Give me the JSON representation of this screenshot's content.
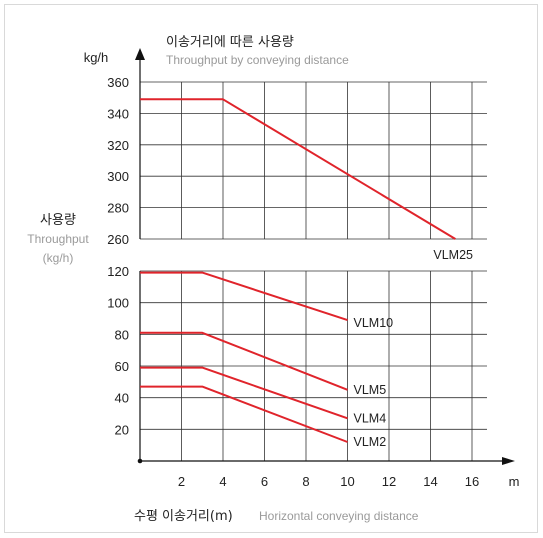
{
  "chart_data": {
    "type": "line",
    "title": "이송거리에 따른 사용량",
    "subtitle": "Throughput by conveying distance",
    "ylabel_unit": "kg/h",
    "ylabel_ko": "사용량",
    "ylabel_en": "Throughput",
    "ylabel_unit_paren": "(kg/h)",
    "xlabel_unit": "m",
    "xlabel_ko": "수평 이송거리(m)",
    "xlabel_en": "Horizontal conveying distance",
    "origin_label": "•",
    "xlim": [
      0,
      16
    ],
    "x_ticks": [
      "2",
      "4",
      "6",
      "8",
      "10",
      "12",
      "14",
      "16"
    ],
    "y_break": "axis is broken between 120 and 260",
    "y_ticks_upper": [
      "360",
      "340",
      "320",
      "300",
      "280",
      "260"
    ],
    "y_ticks_lower": [
      "120",
      "100",
      "80",
      "60",
      "40",
      "20"
    ],
    "grid": true,
    "line_color": "#e0242b",
    "series": [
      {
        "name": "VLM25",
        "x": [
          0,
          4,
          15.2
        ],
        "y": [
          349,
          349,
          260
        ]
      },
      {
        "name": "VLM10",
        "x": [
          0,
          3,
          10
        ],
        "y": [
          119,
          119,
          89
        ]
      },
      {
        "name": "VLM5",
        "x": [
          0,
          3,
          10
        ],
        "y": [
          81,
          81,
          45
        ]
      },
      {
        "name": "VLM4",
        "x": [
          0,
          3,
          10
        ],
        "y": [
          59,
          59,
          27
        ]
      },
      {
        "name": "VLM2",
        "x": [
          0,
          3,
          10
        ],
        "y": [
          47,
          47,
          12
        ]
      }
    ]
  }
}
